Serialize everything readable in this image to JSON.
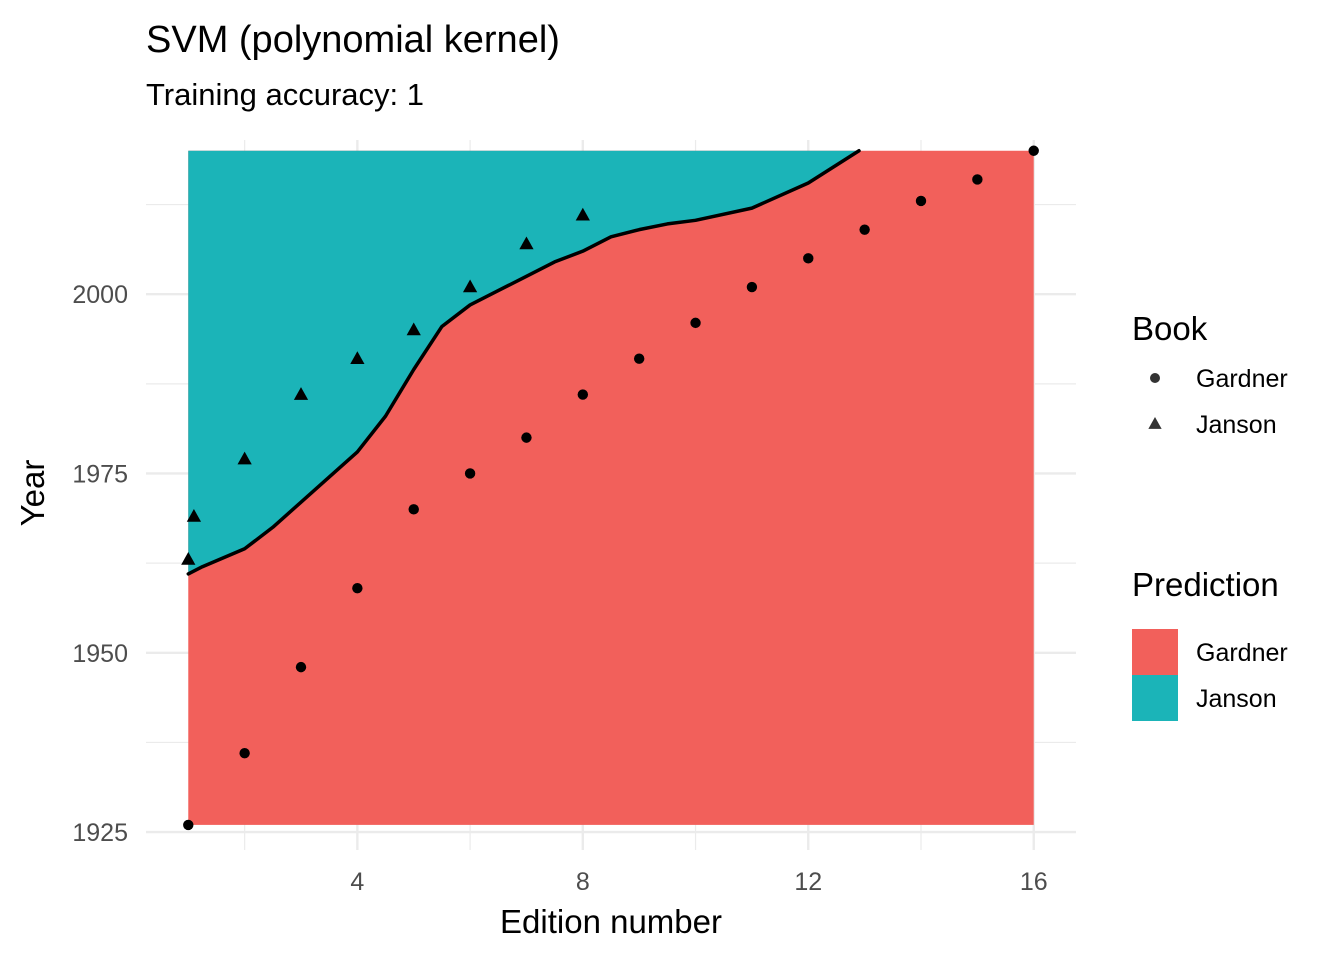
{
  "chart_data": {
    "type": "scatter",
    "title": "SVM (polynomial kernel)",
    "subtitle": "Training accuracy: 1",
    "xlabel": "Edition number",
    "ylabel": "Year",
    "xlim": [
      0.25,
      16.75
    ],
    "ylim": [
      1922.5,
      2021.5
    ],
    "x_ticks": [
      4,
      8,
      12,
      16
    ],
    "x_tick_labels": [
      "4",
      "8",
      "12",
      "16"
    ],
    "x_minor_ticks": [
      2,
      6,
      10,
      14
    ],
    "y_ticks": [
      1925,
      1950,
      1975,
      2000
    ],
    "y_tick_labels": [
      "1925",
      "1950",
      "1975",
      "2000"
    ],
    "y_minor_ticks": [
      1937.5,
      1962.5,
      1987.5,
      2012.5
    ],
    "grid": true,
    "region": {
      "x_range": [
        1,
        16
      ],
      "y_range": [
        1926,
        2020
      ],
      "below_boundary_class": "Gardner",
      "above_boundary_class": "Janson"
    },
    "decision_boundary": {
      "x": [
        1,
        1.25,
        2,
        2.5,
        3,
        4,
        4.5,
        5,
        5.5,
        6,
        6.5,
        7,
        7.5,
        8,
        8.5,
        9,
        9.5,
        10,
        11,
        12,
        12.9
      ],
      "y": [
        1961,
        1962,
        1964.5,
        1967.5,
        1971,
        1978,
        1983,
        1989.5,
        1995.5,
        1998.5,
        2000.5,
        2002.5,
        2004.5,
        2006,
        2008,
        2009,
        2009.8,
        2010.3,
        2012,
        2015.5,
        2020
      ]
    },
    "series": [
      {
        "name": "Gardner",
        "shape": "circle",
        "x": [
          1,
          2,
          3,
          4,
          5,
          6,
          7,
          8,
          9,
          10,
          11,
          12,
          13,
          14,
          15,
          16
        ],
        "y": [
          1926,
          1936,
          1948,
          1959,
          1970,
          1975,
          1980,
          1986,
          1991,
          1996,
          2001,
          2005,
          2009,
          2013,
          2016,
          2020
        ]
      },
      {
        "name": "Janson",
        "shape": "triangle",
        "x": [
          1,
          1.1,
          2,
          3,
          4,
          5,
          6,
          7,
          8
        ],
        "y": [
          1963,
          1969,
          1977,
          1986,
          1991,
          1995,
          2001,
          2007,
          2011
        ]
      }
    ],
    "legends": [
      {
        "title": "Book",
        "kind": "shape",
        "entries": [
          {
            "label": "Gardner",
            "shape": "circle"
          },
          {
            "label": "Janson",
            "shape": "triangle"
          }
        ]
      },
      {
        "title": "Prediction",
        "kind": "fill",
        "entries": [
          {
            "label": "Gardner",
            "color": "#f2605b"
          },
          {
            "label": "Janson",
            "color": "#1bb4b8"
          }
        ]
      }
    ],
    "legend_position": "right",
    "colors": {
      "Gardner": "#f2605b",
      "Janson": "#1bb4b8",
      "points": "#000000",
      "boundary": "#000000",
      "grid": "#ebebeb"
    }
  }
}
